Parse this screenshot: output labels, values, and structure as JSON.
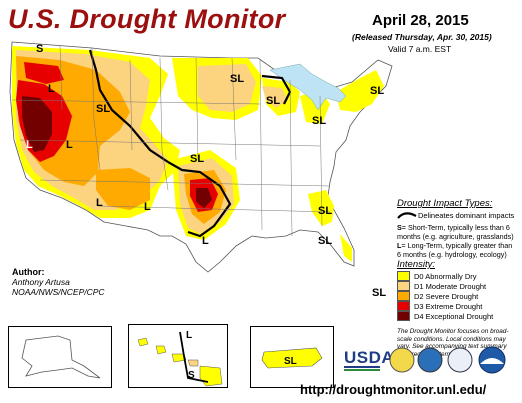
{
  "header": {
    "title": "U.S. Drought Monitor",
    "date": "April 28, 2015",
    "released": "(Released Thursday, Apr. 30, 2015)",
    "valid": "Valid 7 a.m. EST"
  },
  "map_labels": {
    "s_nw": "S",
    "l_nw": "L",
    "sl_idaho": "SL",
    "l_ca": "L",
    "sl_nd": "SL",
    "sl_mn": "SL",
    "sl_mi": "SL",
    "sl_ne": "SL",
    "sl_ks": "SL",
    "l_nv": "L",
    "l_az": "L",
    "l_nm": "L",
    "l_tx": "L",
    "sl_ga": "SL",
    "sl_ga2": "SL",
    "sl_fl": "SL",
    "l_hi": "L",
    "s_hi": "S",
    "sl_pr": "SL"
  },
  "legend": {
    "impact_title": "Drought Impact Types:",
    "delineates": "Delineates dominant impacts",
    "short_term_key": "S",
    "short_term": "= Short-Term, typically less than 6 months (e.g. agriculture, grasslands)",
    "long_term_key": "L",
    "long_term": "= Long-Term, typically greater than 6 months (e.g. hydrology, ecology)",
    "intensity_title": "Intensity:",
    "categories": [
      {
        "label": "D0 Abnormally Dry",
        "color": "#ffff00"
      },
      {
        "label": "D1 Moderate Drought",
        "color": "#fcd37f"
      },
      {
        "label": "D2 Severe Drought",
        "color": "#ffaa00"
      },
      {
        "label": "D3 Extreme Drought",
        "color": "#e60000"
      },
      {
        "label": "D4 Exceptional Drought",
        "color": "#730000"
      }
    ],
    "note": "The Drought Monitor focuses on broad-scale conditions. Local conditions may vary. See accompanying text summary for forecast statements."
  },
  "author": {
    "label": "Author:",
    "name": "Anthony Artusa",
    "org": "NOAA/NWS/NCEP/CPC"
  },
  "logos": {
    "usda": "USDA"
  },
  "url": "http://droughtmonitor.unl.edu/"
}
